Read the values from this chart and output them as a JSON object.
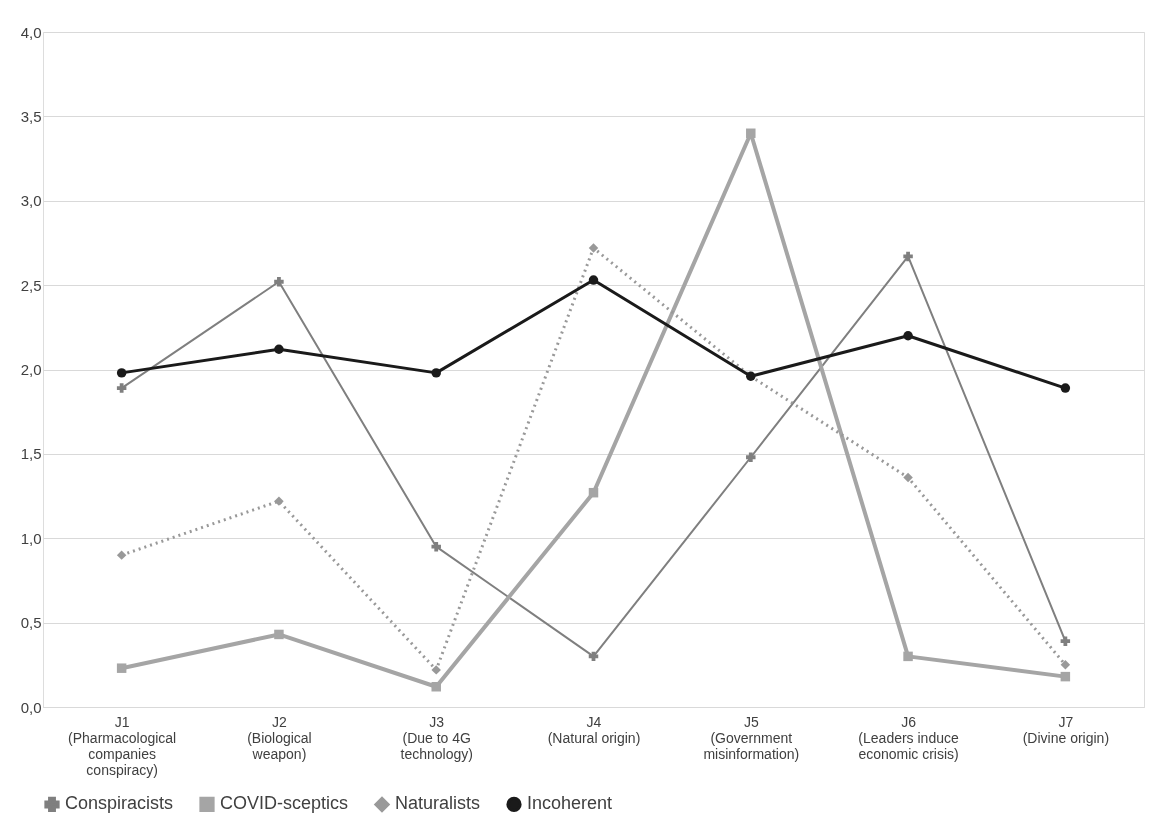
{
  "chart_data": {
    "type": "line",
    "categories": [
      "J1 (Pharmacological companies conspiracy)",
      "J2 (Biological weapon)",
      "J3 (Due to 4G technology)",
      "J4 (Natural origin)",
      "J5 (Government misinformation)",
      "J6 (Leaders induce economic crisis)",
      "J7 (Divine origin)"
    ],
    "series": [
      {
        "name": "Conspiracists",
        "color": "#7f7f7f",
        "marker": "cross",
        "line_style": "solid",
        "values": [
          1.89,
          2.52,
          0.95,
          0.3,
          1.48,
          2.67,
          0.39
        ]
      },
      {
        "name": "COVID-sceptics",
        "color": "#a5a5a5",
        "marker": "square",
        "line_style": "solid",
        "values": [
          0.23,
          0.43,
          0.12,
          1.27,
          3.4,
          0.3,
          0.18
        ]
      },
      {
        "name": "Naturalists",
        "color": "#999999",
        "marker": "diamond",
        "line_style": "dotted",
        "values": [
          0.9,
          1.22,
          0.22,
          2.72,
          1.96,
          1.36,
          0.25
        ]
      },
      {
        "name": "Incoherent",
        "color": "#1a1a1a",
        "marker": "circle",
        "line_style": "solid",
        "values": [
          1.98,
          2.12,
          1.98,
          2.53,
          1.96,
          2.2,
          1.89
        ]
      }
    ],
    "ylim": [
      0,
      4
    ],
    "yticks": [
      {
        "value": 0,
        "label": "0,0"
      },
      {
        "value": 0.5,
        "label": "0,5"
      },
      {
        "value": 1,
        "label": "1,0"
      },
      {
        "value": 1.5,
        "label": "1,5"
      },
      {
        "value": 2,
        "label": "2,0"
      },
      {
        "value": 2.5,
        "label": "2,5"
      },
      {
        "value": 3,
        "label": "3,0"
      },
      {
        "value": 3.5,
        "label": "3,5"
      },
      {
        "value": 4,
        "label": "4,0"
      }
    ],
    "grid": "y",
    "legend": "bottom"
  }
}
